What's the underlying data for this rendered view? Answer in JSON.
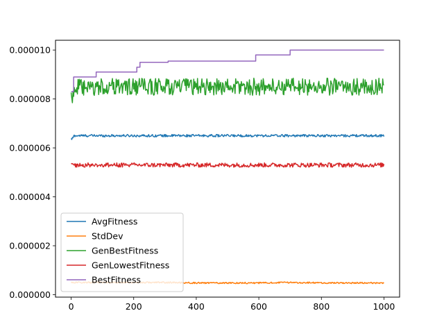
{
  "chart_data": {
    "type": "line",
    "title": "",
    "xlabel": "",
    "ylabel": "",
    "xlim": [
      -50,
      1050
    ],
    "ylim": [
      -1e-07,
      1.04e-05
    ],
    "x_ticks": [
      0,
      200,
      400,
      600,
      800,
      1000
    ],
    "x_tick_labels": [
      "0",
      "200",
      "400",
      "600",
      "800",
      "1000"
    ],
    "y_ticks": [
      0.0,
      2e-06,
      4e-06,
      6e-06,
      8e-06,
      1e-05
    ],
    "y_tick_labels": [
      "0.000000",
      "0.000002",
      "0.000004",
      "0.000006",
      "0.000008",
      "0.000010"
    ],
    "grid": false,
    "legend_placement": "lower-left",
    "series": [
      {
        "name": "AvgFitness",
        "color": "#1f77b4",
        "shape": "noisy",
        "x": [
          0,
          5,
          10,
          50,
          100,
          200,
          300,
          400,
          500,
          600,
          700,
          800,
          900,
          1000
        ],
        "values": [
          6.35e-06,
          6.4e-06,
          6.5e-06,
          6.5e-06,
          6.5e-06,
          6.5e-06,
          6.5e-06,
          6.5e-06,
          6.5e-06,
          6.5e-06,
          6.5e-06,
          6.5e-06,
          6.5e-06,
          6.5e-06
        ],
        "noise": 5e-08
      },
      {
        "name": "StdDev",
        "color": "#ff7f0e",
        "shape": "noisy",
        "x": [
          0,
          100,
          200,
          300,
          400,
          500,
          600,
          700,
          800,
          900,
          1000
        ],
        "values": [
          5e-07,
          5e-07,
          5e-07,
          5e-07,
          4.8e-07,
          4.8e-07,
          4.8e-07,
          5e-07,
          4.8e-07,
          4.8e-07,
          4.8e-07
        ],
        "noise": 3e-08
      },
      {
        "name": "GenBestFitness",
        "color": "#2ca02c",
        "shape": "noisy",
        "x": [
          0,
          5,
          10,
          50,
          100,
          150,
          200,
          250,
          300,
          350,
          400,
          450,
          500,
          550,
          600,
          650,
          700,
          750,
          800,
          850,
          900,
          950,
          1000
        ],
        "values": [
          8.3e-06,
          8e-06,
          8.5e-06,
          8.4e-06,
          8.5e-06,
          8.5e-06,
          8.5e-06,
          8.5e-06,
          8.5e-06,
          8.5e-06,
          8.5e-06,
          8.5e-06,
          8.5e-06,
          8.5e-06,
          8.5e-06,
          8.5e-06,
          8.5e-06,
          8.5e-06,
          8.5e-06,
          8.5e-06,
          8.5e-06,
          8.5e-06,
          8.5e-06
        ],
        "noise": 3.5e-07
      },
      {
        "name": "GenLowestFitness",
        "color": "#d62728",
        "shape": "noisy",
        "x": [
          0,
          100,
          200,
          300,
          400,
          500,
          600,
          700,
          800,
          900,
          1000
        ],
        "values": [
          5.3e-06,
          5.3e-06,
          5.3e-06,
          5.3e-06,
          5.3e-06,
          5.3e-06,
          5.3e-06,
          5.3e-06,
          5.3e-06,
          5.3e-06,
          5.3e-06
        ],
        "noise": 9e-08
      },
      {
        "name": "BestFitness",
        "color": "#9467bd",
        "shape": "step",
        "x": [
          0,
          8,
          80,
          210,
          220,
          310,
          590,
          700,
          1000
        ],
        "values": [
          8.3e-06,
          8.9e-06,
          9.1e-06,
          9.3e-06,
          9.5e-06,
          9.55e-06,
          9.8e-06,
          1e-05,
          1e-05
        ]
      }
    ]
  }
}
